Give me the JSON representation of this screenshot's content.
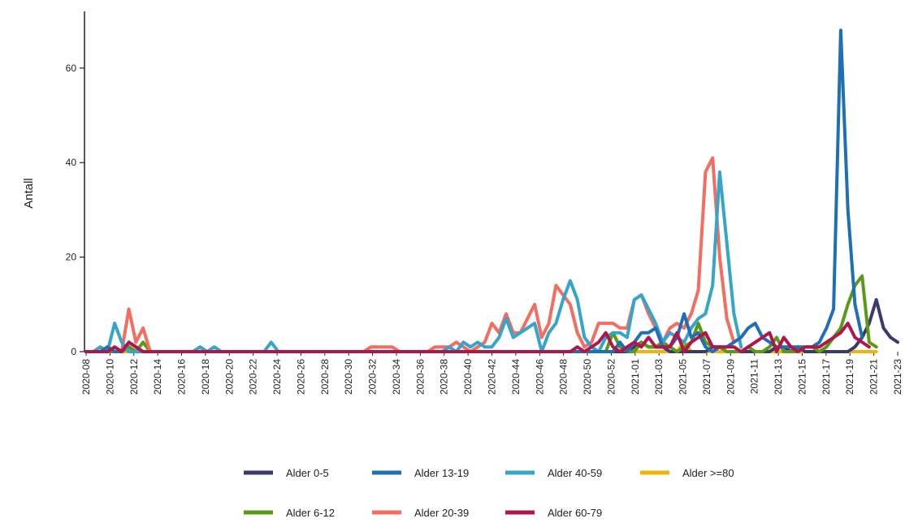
{
  "chart_data": {
    "type": "line",
    "ylabel": "Antall",
    "xlabel": "",
    "ylim": [
      0,
      72
    ],
    "y_ticks": [
      0,
      20,
      40,
      60
    ],
    "x_start": "2020-08",
    "x_tick_labels": [
      "2020-08",
      "2020-10",
      "2020-12",
      "2020-14",
      "2020-16",
      "2020-18",
      "2020-20",
      "2020-22",
      "2020-24",
      "2020-26",
      "2020-28",
      "2020-30",
      "2020-32",
      "2020-34",
      "2020-36",
      "2020-38",
      "2020-40",
      "2020-42",
      "2020-44",
      "2020-46",
      "2020-48",
      "2020-50",
      "2020-52",
      "2021-01",
      "2021-03",
      "2021-05",
      "2021-07",
      "2021-09",
      "2021-11",
      "2021-13",
      "2021-15",
      "2021-17",
      "2021-19",
      "2021-21",
      "2021-23"
    ],
    "grid": false,
    "legend_position": "bottom",
    "series": [
      {
        "name": "Alder 0-5",
        "color": "#3a3a6e",
        "values": [
          0,
          0,
          0,
          0,
          0,
          0,
          1,
          0,
          0,
          0,
          0,
          0,
          0,
          0,
          0,
          0,
          0,
          0,
          0,
          0,
          0,
          0,
          0,
          0,
          0,
          0,
          0,
          0,
          0,
          0,
          0,
          0,
          0,
          0,
          0,
          0,
          0,
          0,
          0,
          0,
          0,
          0,
          0,
          0,
          0,
          0,
          0,
          0,
          0,
          0,
          0,
          0,
          0,
          0,
          0,
          0,
          0,
          0,
          0,
          0,
          0,
          0,
          0,
          0,
          0,
          0,
          0,
          0,
          0,
          0,
          0,
          0,
          0,
          0,
          0,
          0,
          0,
          1,
          2,
          1,
          1,
          1,
          0,
          0,
          0,
          0,
          0,
          0,
          1,
          1,
          0,
          0,
          0,
          0,
          0,
          0,
          0,
          1,
          1,
          0,
          1,
          0,
          0,
          0,
          0,
          0,
          0,
          0,
          1,
          3,
          6,
          11,
          5,
          3,
          2
        ]
      },
      {
        "name": "Alder 6-12",
        "color": "#5a9a14",
        "values": [
          0,
          0,
          0,
          0,
          0,
          0,
          1,
          0,
          2,
          0,
          0,
          0,
          0,
          0,
          0,
          0,
          0,
          0,
          0,
          0,
          0,
          0,
          0,
          0,
          0,
          0,
          0,
          0,
          0,
          0,
          0,
          0,
          0,
          0,
          0,
          0,
          0,
          0,
          0,
          0,
          0,
          0,
          0,
          0,
          0,
          0,
          0,
          0,
          0,
          0,
          0,
          0,
          0,
          0,
          0,
          0,
          0,
          0,
          0,
          0,
          0,
          0,
          0,
          0,
          0,
          0,
          0,
          0,
          0,
          0,
          0,
          0,
          0,
          0,
          4,
          1,
          0,
          0,
          2,
          1,
          1,
          2,
          1,
          0,
          1,
          2,
          6,
          2,
          1,
          1,
          0,
          0,
          0,
          1,
          0,
          0,
          1,
          3,
          0,
          0,
          0,
          1,
          1,
          0,
          1,
          3,
          5,
          10,
          14,
          16,
          2,
          1
        ]
      },
      {
        "name": "Alder 13-19",
        "color": "#1f6fb4",
        "values": [
          0,
          0,
          0,
          1,
          0,
          0,
          2,
          1,
          0,
          0,
          0,
          0,
          0,
          0,
          0,
          0,
          0,
          0,
          0,
          0,
          0,
          0,
          0,
          0,
          0,
          0,
          0,
          0,
          0,
          0,
          0,
          0,
          0,
          0,
          0,
          0,
          0,
          0,
          0,
          0,
          0,
          0,
          0,
          0,
          0,
          0,
          0,
          0,
          0,
          0,
          0,
          0,
          0,
          0,
          0,
          0,
          0,
          0,
          0,
          0,
          0,
          0,
          0,
          0,
          0,
          0,
          0,
          0,
          0,
          0,
          0,
          0,
          0,
          0,
          0,
          2,
          0,
          2,
          4,
          4,
          5,
          1,
          1,
          3,
          8,
          3,
          4,
          1,
          0,
          1,
          1,
          2,
          3,
          5,
          6,
          3,
          2,
          1,
          1,
          1,
          1,
          1,
          1,
          2,
          5,
          9,
          68,
          30,
          10,
          3
        ]
      },
      {
        "name": "Alder 20-39",
        "color": "#f46d60",
        "values": [
          0,
          0,
          0,
          1,
          0,
          0,
          9,
          2,
          5,
          0,
          0,
          0,
          0,
          0,
          0,
          0,
          0,
          0,
          0,
          0,
          0,
          0,
          0,
          0,
          0,
          0,
          0,
          0,
          0,
          0,
          0,
          0,
          0,
          0,
          0,
          0,
          0,
          0,
          0,
          0,
          1,
          1,
          1,
          1,
          0,
          0,
          0,
          0,
          0,
          1,
          1,
          1,
          2,
          1,
          0,
          1,
          2,
          6,
          4,
          8,
          4,
          4,
          7,
          10,
          3,
          6,
          14,
          12,
          10,
          4,
          1,
          2,
          6,
          6,
          6,
          5,
          5,
          11,
          12,
          8,
          5,
          2,
          5,
          6,
          5,
          8,
          13,
          38,
          41,
          20,
          7,
          2
        ]
      },
      {
        "name": "Alder 40-59",
        "color": "#35a5c9",
        "values": [
          0,
          0,
          1,
          0,
          6,
          2,
          0,
          0,
          0,
          0,
          0,
          0,
          0,
          0,
          0,
          0,
          1,
          0,
          1,
          0,
          0,
          0,
          0,
          0,
          0,
          0,
          2,
          0,
          0,
          0,
          0,
          0,
          0,
          0,
          0,
          0,
          0,
          0,
          0,
          0,
          0,
          0,
          0,
          0,
          0,
          0,
          0,
          0,
          0,
          0,
          0,
          1,
          0,
          2,
          1,
          2,
          1,
          1,
          3,
          7,
          3,
          4,
          5,
          6,
          0,
          4,
          6,
          11,
          15,
          11,
          3,
          1,
          0,
          3,
          4,
          4,
          3,
          11,
          12,
          9,
          6,
          2,
          4,
          3,
          2,
          5,
          7,
          8,
          14,
          38,
          23,
          8,
          1
        ]
      },
      {
        "name": "Alder 60-79",
        "color": "#b0164c",
        "values": [
          0,
          0,
          0,
          0,
          1,
          0,
          2,
          1,
          0,
          0,
          0,
          0,
          0,
          0,
          0,
          0,
          0,
          0,
          0,
          0,
          0,
          0,
          0,
          0,
          0,
          0,
          0,
          0,
          0,
          0,
          0,
          0,
          0,
          0,
          0,
          0,
          0,
          0,
          0,
          0,
          0,
          0,
          0,
          0,
          0,
          0,
          0,
          0,
          0,
          0,
          0,
          0,
          0,
          0,
          0,
          0,
          0,
          0,
          0,
          0,
          0,
          0,
          0,
          0,
          0,
          0,
          0,
          0,
          0,
          1,
          0,
          1,
          2,
          4,
          1,
          0,
          1,
          2,
          1,
          3,
          1,
          1,
          1,
          4,
          0,
          2,
          3,
          4,
          1,
          1,
          1,
          1,
          0,
          1,
          2,
          3,
          4,
          0,
          3,
          1,
          0,
          1,
          1,
          1,
          2,
          3,
          4,
          6,
          3,
          2,
          1
        ]
      },
      {
        "name": "Alder >=80",
        "color": "#f2b400",
        "values": [
          0,
          0,
          0,
          0,
          0,
          0,
          0,
          0,
          0,
          0,
          0,
          0,
          0,
          0,
          0,
          0,
          0,
          0,
          0,
          0,
          0,
          0,
          0,
          0,
          0,
          0,
          0,
          0,
          0,
          0,
          0,
          0,
          0,
          0,
          0,
          0,
          0,
          0,
          0,
          0,
          0,
          0,
          0,
          0,
          0,
          0,
          0,
          0,
          0,
          0,
          0,
          0,
          0,
          0,
          0,
          0,
          0,
          0,
          0,
          0,
          0,
          0,
          0,
          0,
          0,
          0,
          0,
          0,
          0,
          0,
          0,
          0,
          0,
          0,
          0,
          0,
          0,
          0,
          0,
          0,
          0,
          0,
          0,
          0,
          2,
          0,
          0,
          0,
          0,
          0,
          0,
          0,
          0,
          0,
          0,
          0,
          0,
          0,
          0,
          0,
          0,
          0,
          0,
          0,
          0,
          0,
          0,
          0,
          0,
          0,
          0,
          0
        ]
      }
    ],
    "legend_rows": [
      [
        "Alder 0-5",
        "Alder 13-19",
        "Alder 40-59",
        "Alder >=80"
      ],
      [
        "Alder 6-12",
        "Alder 20-39",
        "Alder 60-79"
      ]
    ]
  }
}
